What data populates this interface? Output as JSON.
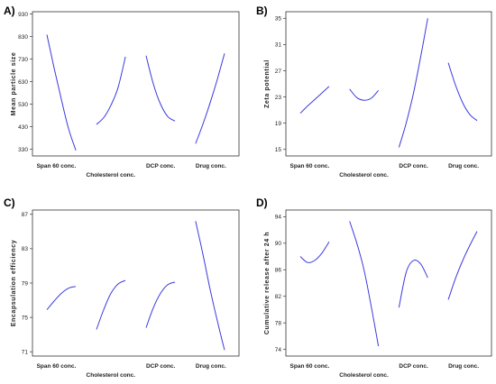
{
  "chart_data": [
    {
      "type": "line",
      "panel": "A)",
      "ylabel": "Mean particle size",
      "ylim": [
        300,
        940
      ],
      "yticks": [
        330,
        430,
        530,
        630,
        730,
        830,
        930
      ],
      "factors": [
        "Span 60 conc.",
        "Cholesterol conc.",
        "DCP conc.",
        "Drug conc."
      ],
      "color": "#3a3adf",
      "series": [
        {
          "x": [
            0,
            0.25,
            0.5,
            0.75,
            1
          ],
          "y": [
            838,
            690,
            550,
            420,
            325
          ]
        },
        {
          "x": [
            0,
            0.25,
            0.5,
            0.75,
            1
          ],
          "y": [
            440,
            470,
            525,
            605,
            740
          ]
        },
        {
          "x": [
            0,
            0.25,
            0.5,
            0.75,
            1
          ],
          "y": [
            745,
            620,
            530,
            475,
            455
          ]
        },
        {
          "x": [
            0,
            0.25,
            0.5,
            0.75,
            1
          ],
          "y": [
            355,
            440,
            535,
            640,
            755
          ]
        }
      ]
    },
    {
      "type": "line",
      "panel": "B)",
      "ylabel": "Zeta potential",
      "ylim": [
        14,
        36
      ],
      "yticks": [
        15,
        19,
        23,
        27,
        31,
        35
      ],
      "factors": [
        "Span 60 conc.",
        "Cholesterol conc.",
        "DCP conc.",
        "Drug conc."
      ],
      "color": "#3a3adf",
      "series": [
        {
          "x": [
            0,
            0.25,
            0.5,
            0.75,
            1
          ],
          "y": [
            20.5,
            21.6,
            22.6,
            23.6,
            24.6
          ]
        },
        {
          "x": [
            0,
            0.25,
            0.5,
            0.75,
            1
          ],
          "y": [
            24.2,
            22.9,
            22.5,
            22.8,
            24.0
          ]
        },
        {
          "x": [
            0,
            0.25,
            0.5,
            0.75,
            1
          ],
          "y": [
            15.3,
            19.0,
            23.5,
            29.0,
            35.0
          ]
        },
        {
          "x": [
            0,
            0.25,
            0.5,
            0.75,
            1
          ],
          "y": [
            28.2,
            24.8,
            22.1,
            20.3,
            19.4
          ]
        }
      ]
    },
    {
      "type": "line",
      "panel": "C)",
      "ylabel": "Encapsulation efficiency",
      "ylim": [
        70.5,
        87.5
      ],
      "yticks": [
        71,
        75,
        79,
        83,
        87
      ],
      "factors": [
        "Span 60 conc.",
        "Cholesterol conc.",
        "DCP conc.",
        "Drug conc."
      ],
      "color": "#3a3adf",
      "series": [
        {
          "x": [
            0,
            0.25,
            0.5,
            0.75,
            1
          ],
          "y": [
            75.9,
            76.9,
            77.8,
            78.4,
            78.6
          ]
        },
        {
          "x": [
            0,
            0.25,
            0.5,
            0.75,
            1
          ],
          "y": [
            73.6,
            75.9,
            77.8,
            78.9,
            79.3
          ]
        },
        {
          "x": [
            0,
            0.25,
            0.5,
            0.75,
            1
          ],
          "y": [
            73.8,
            76.1,
            77.8,
            78.8,
            79.1
          ]
        },
        {
          "x": [
            0,
            0.25,
            0.5,
            0.75,
            1
          ],
          "y": [
            86.2,
            82.4,
            78.3,
            74.6,
            71.2
          ]
        }
      ]
    },
    {
      "type": "line",
      "panel": "D)",
      "ylabel": "Cumulative release after 24 h",
      "ylim": [
        73,
        95
      ],
      "yticks": [
        74,
        78,
        82,
        86,
        90,
        94
      ],
      "factors": [
        "Span 60 conc.",
        "Cholesterol conc.",
        "DCP conc.",
        "Drug conc."
      ],
      "color": "#3a3adf",
      "series": [
        {
          "x": [
            0,
            0.25,
            0.5,
            0.75,
            1
          ],
          "y": [
            88.0,
            87.1,
            87.4,
            88.5,
            90.2
          ]
        },
        {
          "x": [
            0,
            0.25,
            0.5,
            0.75,
            1
          ],
          "y": [
            93.3,
            90.0,
            86.0,
            80.5,
            74.5
          ]
        },
        {
          "x": [
            0,
            0.25,
            0.5,
            0.75,
            1
          ],
          "y": [
            80.3,
            85.6,
            87.4,
            86.9,
            84.8
          ]
        },
        {
          "x": [
            0,
            0.25,
            0.5,
            0.75,
            1
          ],
          "y": [
            81.5,
            84.7,
            87.4,
            89.7,
            91.8
          ]
        }
      ]
    }
  ]
}
